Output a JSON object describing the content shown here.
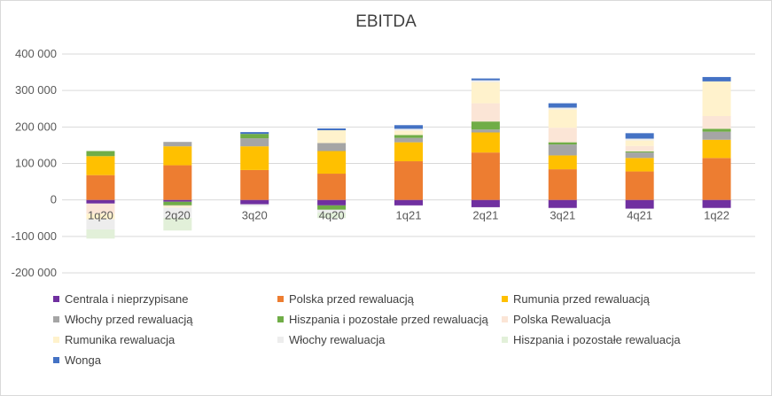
{
  "chart_data": {
    "type": "bar",
    "stacked": true,
    "title": "EBITDA",
    "xlabel": "",
    "ylabel": "",
    "ylim": [
      -200000,
      400000
    ],
    "yticks": [
      400000,
      300000,
      200000,
      100000,
      0,
      -100000,
      -200000
    ],
    "ytick_labels": [
      "400 000",
      "300 000",
      "200 000",
      "100 000",
      "0",
      "-100 000",
      "-200 000"
    ],
    "grid": true,
    "legend_position": "bottom",
    "categories": [
      "1q20",
      "2q20",
      "3q20",
      "4q20",
      "1q21",
      "2q21",
      "3q21",
      "4q21",
      "1q22"
    ],
    "series": [
      {
        "name": "Centrala i nieprzypisane",
        "color": "#7030A0",
        "values": [
          -10000,
          -5000,
          -12000,
          -15000,
          -15000,
          -20000,
          -22000,
          -24000,
          -22000
        ]
      },
      {
        "name": "Polska przed rewaluacją",
        "color": "#ED7D31",
        "values": [
          68000,
          95000,
          82000,
          72000,
          106000,
          130000,
          84000,
          78000,
          115000
        ]
      },
      {
        "name": "Rumunia przed rewaluacją",
        "color": "#FFC000",
        "values": [
          52000,
          52000,
          65000,
          62000,
          52000,
          55000,
          38000,
          37000,
          50000
        ]
      },
      {
        "name": "Włochy przed rewaluacją",
        "color": "#A5A5A5",
        "values": [
          0,
          12000,
          22000,
          22000,
          12000,
          8000,
          30000,
          15000,
          22000
        ]
      },
      {
        "name": "Hiszpania i pozostałe przed rewaluacją",
        "color": "#70AD47",
        "values": [
          14000,
          -10000,
          12000,
          -12000,
          8000,
          22000,
          6000,
          3000,
          8000
        ]
      },
      {
        "name": "Polska Rewaluacja",
        "color": "#FBE5D6",
        "values": [
          -28000,
          -3000,
          0,
          0,
          0,
          50000,
          40000,
          15000,
          35000
        ]
      },
      {
        "name": "Rumunika rewaluacja",
        "color": "#FFF2CC",
        "values": [
          -15000,
          -3000,
          0,
          35000,
          12000,
          58000,
          50000,
          15000,
          95000
        ]
      },
      {
        "name": "Włochy rewaluacja",
        "color": "#EDEDED",
        "values": [
          -28000,
          -28000,
          -5000,
          -8000,
          5000,
          5000,
          5000,
          5000,
          0
        ]
      },
      {
        "name": "Hiszpania i pozostałe rewaluacja",
        "color": "#E2F0D9",
        "values": [
          -25000,
          -35000,
          0,
          -15000,
          0,
          0,
          0,
          0,
          0
        ]
      },
      {
        "name": "Wonga",
        "color": "#4472C4",
        "values": [
          0,
          0,
          5000,
          5000,
          10000,
          5000,
          12000,
          15000,
          12000
        ]
      }
    ]
  }
}
